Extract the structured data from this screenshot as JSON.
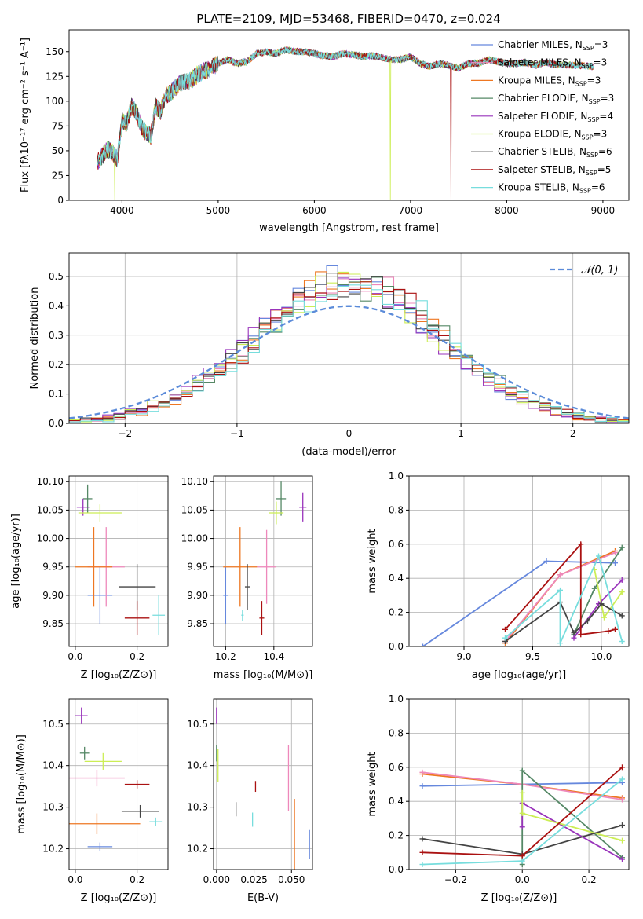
{
  "colors": {
    "Chabrier MILES": "#6688dd",
    "Salpeter MILES": "#ee88bb",
    "Kroupa MILES": "#ee7722",
    "Chabrier ELODIE": "#558866",
    "Salpeter ELODIE": "#9933bb",
    "Kroupa ELODIE": "#ccee55",
    "Chabrier STELIB": "#444444",
    "Salpeter STELIB": "#aa1111",
    "Kroupa STELIB": "#77dddd"
  },
  "chart_data": [
    {
      "id": "spectrum",
      "type": "line",
      "title": "PLATE=2109, MJD=53468, FIBERID=0470, z=0.024",
      "xlabel": "wavelength [Angstrom, rest frame]",
      "ylabel": "Flux [fλ10⁻¹⁷ erg cm⁻² s⁻¹ A⁻¹]",
      "xlim": [
        3450,
        9270
      ],
      "ylim": [
        0,
        172
      ],
      "xticks": [
        4000,
        5000,
        6000,
        7000,
        8000,
        9000
      ],
      "yticks": [
        0,
        25,
        50,
        75,
        100,
        125,
        150
      ],
      "legend_position": "upper right",
      "legend": [
        "Chabrier MILES, N<sub>SSP</sub>=3",
        "Salpeter MILES, N<sub>SSP</sub>=3",
        "Kroupa MILES, N<sub>SSP</sub>=3",
        "Chabrier ELODIE, N<sub>SSP</sub>=3",
        "Salpeter ELODIE, N<sub>SSP</sub>=4",
        "Kroupa ELODIE, N<sub>SSP</sub>=3",
        "Chabrier STELIB, N<sub>SSP</sub>=6",
        "Salpeter STELIB, N<sub>SSP</sub>=5",
        "Kroupa STELIB, N<sub>SSP</sub>=6"
      ],
      "series_names": [
        "Chabrier MILES",
        "Salpeter MILES",
        "Kroupa MILES",
        "Chabrier ELODIE",
        "Salpeter ELODIE",
        "Kroupa ELODIE",
        "Chabrier STELIB",
        "Salpeter STELIB",
        "Kroupa STELIB"
      ],
      "envelope": {
        "x": [
          3740,
          3800,
          3850,
          3900,
          3950,
          4000,
          4050,
          4100,
          4150,
          4200,
          4250,
          4300,
          4350,
          4400,
          4450,
          4500,
          4600,
          4700,
          4800,
          4900,
          5000,
          5100,
          5200,
          5300,
          5400,
          5500,
          5600,
          5700,
          5800,
          5900,
          6000,
          6100,
          6200,
          6300,
          6400,
          6500,
          6600,
          6700,
          6800,
          6900,
          7000,
          7100,
          7200,
          7300,
          7400,
          7500,
          7600,
          7700,
          7800,
          7900,
          8000,
          8100,
          8200,
          8300,
          8400,
          8500,
          8600,
          8700,
          8800,
          8900
        ],
        "y": [
          38,
          45,
          52,
          48,
          42,
          80,
          78,
          95,
          88,
          75,
          68,
          65,
          95,
          90,
          105,
          108,
          118,
          120,
          128,
          132,
          138,
          142,
          138,
          140,
          148,
          150,
          148,
          152,
          150,
          150,
          148,
          146,
          145,
          148,
          147,
          145,
          146,
          144,
          142,
          142,
          145,
          138,
          135,
          138,
          136,
          133,
          138,
          138,
          142,
          140,
          138,
          138,
          139,
          136,
          139,
          137,
          137,
          136,
          136,
          135
        ]
      },
      "dips": [
        {
          "series": "Kroupa ELODIE",
          "x": 3925
        },
        {
          "series": "Kroupa ELODIE",
          "x": 6790
        },
        {
          "series": "Salpeter STELIB",
          "x": 7420
        }
      ]
    },
    {
      "id": "residuals",
      "type": "line",
      "xlabel": "(data-model)/error",
      "ylabel": "Normed distribution",
      "xlim": [
        -2.5,
        2.5
      ],
      "ylim": [
        0,
        0.58
      ],
      "xticks": [
        -2,
        -1,
        0,
        1,
        2
      ],
      "yticks": [
        0.0,
        0.1,
        0.2,
        0.3,
        0.4,
        0.5
      ],
      "grid": true,
      "legend_position": "upper right",
      "reference_label": "𝒩(0, 1)",
      "reference": "normal(0,1)",
      "bin_width": 0.1,
      "histograms": "approx. normal with sigma 0.82, peak approx. 0.48-0.56"
    },
    {
      "id": "age_vs_Z",
      "type": "scatter",
      "xlabel": "Z [log₁₀(Z/Z⊙)]",
      "ylabel": "age  [log₁₀(age/yr)]",
      "xlim": [
        -0.02,
        0.3
      ],
      "ylim": [
        9.81,
        10.11
      ],
      "xticks": [
        0.0,
        0.2
      ],
      "yticks": [
        9.85,
        9.9,
        9.95,
        10.0,
        10.05,
        10.1
      ],
      "grid": true,
      "points": [
        {
          "s": "Chabrier MILES",
          "x": 0.08,
          "y": 9.9,
          "xe": 0.04,
          "ye": 0.05
        },
        {
          "s": "Salpeter MILES",
          "x": 0.1,
          "y": 9.95,
          "xe": 0.06,
          "ye": 0.07
        },
        {
          "s": "Kroupa MILES",
          "x": 0.06,
          "y": 9.95,
          "xe": 0.06,
          "ye": 0.07
        },
        {
          "s": "Chabrier ELODIE",
          "x": 0.04,
          "y": 10.07,
          "xe": 0.015,
          "ye": 0.025
        },
        {
          "s": "Salpeter ELODIE",
          "x": 0.025,
          "y": 10.055,
          "xe": 0.02,
          "ye": 0.015
        },
        {
          "s": "Kroupa ELODIE",
          "x": 0.08,
          "y": 10.045,
          "xe": 0.07,
          "ye": 0.015
        },
        {
          "s": "Chabrier STELIB",
          "x": 0.2,
          "y": 9.915,
          "xe": 0.06,
          "ye": 0.04
        },
        {
          "s": "Salpeter STELIB",
          "x": 0.2,
          "y": 9.86,
          "xe": 0.04,
          "ye": 0.03
        },
        {
          "s": "Kroupa STELIB",
          "x": 0.27,
          "y": 9.865,
          "xe": 0.02,
          "ye": 0.035
        }
      ]
    },
    {
      "id": "age_vs_mass",
      "type": "scatter",
      "xlabel": "mass [log₁₀(M/M⊙)]",
      "ylabel": "",
      "xlim": [
        10.15,
        10.56
      ],
      "ylim": [
        9.81,
        10.11
      ],
      "xticks": [
        10.2,
        10.4
      ],
      "yticks": [
        9.85,
        9.9,
        9.95,
        10.0,
        10.05,
        10.1
      ],
      "grid": true,
      "points": [
        {
          "s": "Chabrier MILES",
          "x": 10.2,
          "y": 9.9,
          "xe": 0.01,
          "ye": 0.05
        },
        {
          "s": "Salpeter MILES",
          "x": 10.37,
          "y": 9.95,
          "xe": 0.04,
          "ye": 0.065
        },
        {
          "s": "Kroupa MILES",
          "x": 10.26,
          "y": 9.95,
          "xe": 0.07,
          "ye": 0.07
        },
        {
          "s": "Chabrier ELODIE",
          "x": 10.43,
          "y": 10.07,
          "xe": 0.02,
          "ye": 0.03
        },
        {
          "s": "Salpeter ELODIE",
          "x": 10.52,
          "y": 10.055,
          "xe": 0.015,
          "ye": 0.025
        },
        {
          "s": "Kroupa ELODIE",
          "x": 10.41,
          "y": 10.045,
          "xe": 0.03,
          "ye": 0.02
        },
        {
          "s": "Chabrier STELIB",
          "x": 10.29,
          "y": 9.915,
          "xe": 0.01,
          "ye": 0.04
        },
        {
          "s": "Salpeter STELIB",
          "x": 10.35,
          "y": 9.86,
          "xe": 0.01,
          "ye": 0.03
        },
        {
          "s": "Kroupa STELIB",
          "x": 10.27,
          "y": 9.865,
          "xe": 0.005,
          "ye": 0.01
        }
      ]
    },
    {
      "id": "weight_vs_age",
      "type": "line",
      "xlabel": "age  [log₁₀(age/yr)]",
      "ylabel": "mass weight",
      "xlim": [
        8.6,
        10.2
      ],
      "ylim": [
        0,
        1.0
      ],
      "xticks": [
        9.0,
        9.5,
        10.0
      ],
      "yticks": [
        0.0,
        0.2,
        0.4,
        0.6,
        0.8,
        1.0
      ],
      "grid": true,
      "series": [
        {
          "s": "Chabrier MILES",
          "x": [
            8.7,
            9.6,
            10.1
          ],
          "y": [
            0.0,
            0.5,
            0.49
          ]
        },
        {
          "s": "Kroupa MILES",
          "x": [
            9.3,
            9.7,
            10.1
          ],
          "y": [
            0.02,
            0.42,
            0.56
          ]
        },
        {
          "s": "Salpeter MILES",
          "x": [
            9.3,
            9.7,
            10.1
          ],
          "y": [
            0.03,
            0.42,
            0.55
          ]
        },
        {
          "s": "Chabrier ELODIE",
          "x": [
            9.8,
            9.95,
            10.15
          ],
          "y": [
            0.07,
            0.34,
            0.58
          ]
        },
        {
          "s": "Salpeter ELODIE",
          "x": [
            9.8,
            9.98,
            10.15
          ],
          "y": [
            0.05,
            0.25,
            0.39
          ]
        },
        {
          "s": "Kroupa ELODIE",
          "x": [
            9.95,
            10.02,
            10.15
          ],
          "y": [
            0.45,
            0.17,
            0.32
          ]
        },
        {
          "s": "Chabrier STELIB",
          "x": [
            9.3,
            9.7,
            9.8,
            9.9,
            10.0,
            10.15
          ],
          "y": [
            0.03,
            0.26,
            0.08,
            0.15,
            0.25,
            0.18
          ]
        },
        {
          "s": "Salpeter STELIB",
          "x": [
            9.3,
            9.85,
            9.85,
            10.05,
            10.1
          ],
          "y": [
            0.1,
            0.6,
            0.07,
            0.09,
            0.1
          ]
        },
        {
          "s": "Kroupa STELIB",
          "x": [
            9.3,
            9.7,
            9.7,
            9.98,
            10.15
          ],
          "y": [
            0.05,
            0.33,
            0.02,
            0.53,
            0.03
          ]
        }
      ]
    },
    {
      "id": "mass_vs_Z",
      "type": "scatter",
      "xlabel": "Z [log₁₀(Z/Z⊙)]",
      "ylabel": "mass [log₁₀(M/M⊙)]",
      "xlim": [
        -0.02,
        0.3
      ],
      "ylim": [
        10.15,
        10.56
      ],
      "xticks": [
        0.0,
        0.2
      ],
      "yticks": [
        10.2,
        10.3,
        10.4,
        10.5
      ],
      "grid": true,
      "points": [
        {
          "s": "Chabrier MILES",
          "x": 0.08,
          "y": 10.205,
          "xe": 0.04,
          "ye": 0.01
        },
        {
          "s": "Salpeter MILES",
          "x": 0.07,
          "y": 10.37,
          "xe": 0.09,
          "ye": 0.02
        },
        {
          "s": "Kroupa MILES",
          "x": 0.07,
          "y": 10.26,
          "xe": 0.14,
          "ye": 0.025
        },
        {
          "s": "Chabrier ELODIE",
          "x": 0.03,
          "y": 10.43,
          "xe": 0.015,
          "ye": 0.015
        },
        {
          "s": "Salpeter ELODIE",
          "x": 0.02,
          "y": 10.52,
          "xe": 0.02,
          "ye": 0.02
        },
        {
          "s": "Kroupa ELODIE",
          "x": 0.09,
          "y": 10.41,
          "xe": 0.06,
          "ye": 0.02
        },
        {
          "s": "Chabrier STELIB",
          "x": 0.21,
          "y": 10.29,
          "xe": 0.06,
          "ye": 0.015
        },
        {
          "s": "Salpeter STELIB",
          "x": 0.2,
          "y": 10.355,
          "xe": 0.04,
          "ye": 0.01
        },
        {
          "s": "Kroupa STELIB",
          "x": 0.26,
          "y": 10.265,
          "xe": 0.02,
          "ye": 0.01
        }
      ]
    },
    {
      "id": "mass_vs_ebv",
      "type": "scatter",
      "xlabel": "E(B-V)",
      "ylabel": "",
      "xlim": [
        -0.002,
        0.064
      ],
      "ylim": [
        10.15,
        10.56
      ],
      "xticks": [
        0.0,
        0.025,
        0.05
      ],
      "yticks": [
        10.2,
        10.3,
        10.4,
        10.5
      ],
      "grid": true,
      "points": [
        {
          "s": "Chabrier MILES",
          "x": 0.062,
          "y": 10.21,
          "xe": 0,
          "ye": 0.035
        },
        {
          "s": "Salpeter MILES",
          "x": 0.048,
          "y": 10.37,
          "xe": 0,
          "ye": 0.08
        },
        {
          "s": "Kroupa MILES",
          "x": 0.052,
          "y": 10.22,
          "xe": 0,
          "ye": 0.1
        },
        {
          "s": "Chabrier ELODIE",
          "x": 0.0,
          "y": 10.43,
          "xe": 0,
          "ye": 0.02
        },
        {
          "s": "Salpeter ELODIE",
          "x": 0.0,
          "y": 10.52,
          "xe": 0,
          "ye": 0.02
        },
        {
          "s": "Kroupa ELODIE",
          "x": 0.001,
          "y": 10.4,
          "xe": 0,
          "ye": 0.04
        },
        {
          "s": "Chabrier STELIB",
          "x": 0.013,
          "y": 10.295,
          "xe": 0,
          "ye": 0.017
        },
        {
          "s": "Salpeter STELIB",
          "x": 0.026,
          "y": 10.35,
          "xe": 0,
          "ye": 0.013
        },
        {
          "s": "Kroupa STELIB",
          "x": 0.024,
          "y": 10.27,
          "xe": 0,
          "ye": 0.017
        }
      ]
    },
    {
      "id": "weight_vs_Z",
      "type": "line",
      "xlabel": "Z [log₁₀(Z/Z⊙)]",
      "ylabel": "mass weight",
      "xlim": [
        -0.34,
        0.32
      ],
      "ylim": [
        0,
        1.0
      ],
      "xticks": [
        -0.2,
        0.0,
        0.2
      ],
      "yticks": [
        0.0,
        0.2,
        0.4,
        0.6,
        0.8,
        1.0
      ],
      "grid": true,
      "series": [
        {
          "s": "Chabrier MILES",
          "x": [
            -0.3,
            0.0,
            0.3
          ],
          "y": [
            0.49,
            0.5,
            0.51
          ]
        },
        {
          "s": "Kroupa MILES",
          "x": [
            -0.3,
            0.0,
            0.3
          ],
          "y": [
            0.56,
            0.5,
            0.42
          ]
        },
        {
          "s": "Salpeter MILES",
          "x": [
            -0.3,
            0.0,
            0.3
          ],
          "y": [
            0.57,
            0.5,
            0.41
          ]
        },
        {
          "s": "Chabrier ELODIE",
          "x": [
            0.0,
            0.0,
            0.3
          ],
          "y": [
            0.03,
            0.58,
            0.07
          ]
        },
        {
          "s": "Salpeter ELODIE",
          "x": [
            0.0,
            0.0,
            0.3
          ],
          "y": [
            0.25,
            0.39,
            0.06
          ]
        },
        {
          "s": "Kroupa ELODIE",
          "x": [
            0.0,
            0.0,
            0.3
          ],
          "y": [
            0.45,
            0.33,
            0.17
          ]
        },
        {
          "s": "Chabrier STELIB",
          "x": [
            -0.3,
            0.0,
            0.3
          ],
          "y": [
            0.18,
            0.09,
            0.26
          ]
        },
        {
          "s": "Salpeter STELIB",
          "x": [
            -0.3,
            0.0,
            0.3
          ],
          "y": [
            0.1,
            0.08,
            0.6
          ]
        },
        {
          "s": "Kroupa STELIB",
          "x": [
            -0.3,
            0.0,
            0.3
          ],
          "y": [
            0.03,
            0.05,
            0.53
          ]
        }
      ]
    }
  ]
}
